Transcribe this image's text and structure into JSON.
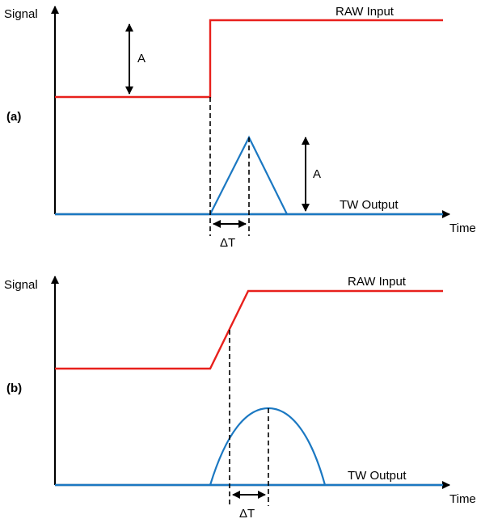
{
  "panel_a": {
    "panel_label": "(a)",
    "y_axis_label": "Signal",
    "x_axis_label": "Time",
    "raw_label": "RAW Input",
    "tw_label": "TW Output",
    "amplitude_label_raw": "A",
    "amplitude_label_tw": "A",
    "delta_t_label": "ΔT"
  },
  "panel_b": {
    "panel_label": "(b)",
    "y_axis_label": "Signal",
    "x_axis_label": "Time",
    "raw_label": "RAW Input",
    "tw_label": "TW Output",
    "delta_t_label": "ΔT"
  },
  "colors": {
    "raw": "#e8201c",
    "tw": "#1b78c2",
    "axis": "#000000"
  },
  "arrow_icon": "arrow-head"
}
